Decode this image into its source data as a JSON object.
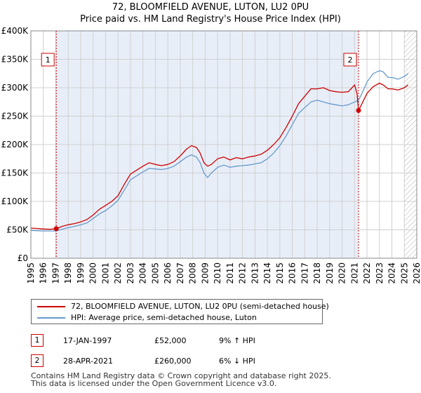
{
  "header": {
    "title_line1": "72, BLOOMFIELD AVENUE, LUTON, LU2 0PU",
    "title_line2": "Price paid vs. HM Land Registry's House Price Index (HPI)"
  },
  "chart_data": {
    "type": "line",
    "xlim": [
      1995,
      2026
    ],
    "ylim": [
      0,
      400000
    ],
    "y_ticks": [
      {
        "value": 0,
        "label": "£0"
      },
      {
        "value": 50000,
        "label": "£50K"
      },
      {
        "value": 100000,
        "label": "£100K"
      },
      {
        "value": 150000,
        "label": "£150K"
      },
      {
        "value": 200000,
        "label": "£200K"
      },
      {
        "value": 250000,
        "label": "£250K"
      },
      {
        "value": 300000,
        "label": "£300K"
      },
      {
        "value": 350000,
        "label": "£350K"
      },
      {
        "value": 400000,
        "label": "£400K"
      }
    ],
    "x_ticks": [
      "1995",
      "1996",
      "1997",
      "1998",
      "1999",
      "2000",
      "2001",
      "2002",
      "2003",
      "2004",
      "2005",
      "2006",
      "2007",
      "2008",
      "2009",
      "2010",
      "2011",
      "2012",
      "2013",
      "2014",
      "2015",
      "2016",
      "2017",
      "2018",
      "2019",
      "2020",
      "2021",
      "2022",
      "2023",
      "2024",
      "2025",
      "2026"
    ],
    "grid": true,
    "shaded_period": [
      1997.04,
      2021.32
    ],
    "future_hatch_from": 2025.0,
    "colors": {
      "price": "#cc0000",
      "hpi": "#6699cc",
      "shade": "#e8eef8",
      "marker": "#cc0000"
    },
    "series": [
      {
        "name": "72, BLOOMFIELD AVENUE, LUTON, LU2 0PU (semi-detached house)",
        "color": "#cc0000",
        "points": [
          [
            1995.0,
            53000
          ],
          [
            1995.5,
            52500
          ],
          [
            1996.0,
            51500
          ],
          [
            1996.5,
            51000
          ],
          [
            1997.04,
            52000
          ],
          [
            1997.5,
            56000
          ],
          [
            1998.0,
            59000
          ],
          [
            1998.5,
            61000
          ],
          [
            1999.0,
            64000
          ],
          [
            1999.5,
            68000
          ],
          [
            2000.0,
            76000
          ],
          [
            2000.5,
            86000
          ],
          [
            2001.0,
            93000
          ],
          [
            2001.5,
            100000
          ],
          [
            2002.0,
            110000
          ],
          [
            2002.5,
            130000
          ],
          [
            2003.0,
            148000
          ],
          [
            2003.5,
            155000
          ],
          [
            2004.0,
            162000
          ],
          [
            2004.5,
            168000
          ],
          [
            2005.0,
            165000
          ],
          [
            2005.5,
            163000
          ],
          [
            2006.0,
            165000
          ],
          [
            2006.5,
            170000
          ],
          [
            2007.0,
            180000
          ],
          [
            2007.5,
            192000
          ],
          [
            2007.9,
            198000
          ],
          [
            2008.3,
            195000
          ],
          [
            2008.6,
            185000
          ],
          [
            2008.9,
            168000
          ],
          [
            2009.2,
            162000
          ],
          [
            2009.5,
            165000
          ],
          [
            2010.0,
            175000
          ],
          [
            2010.5,
            178000
          ],
          [
            2011.0,
            173000
          ],
          [
            2011.5,
            177000
          ],
          [
            2012.0,
            175000
          ],
          [
            2012.5,
            178000
          ],
          [
            2013.0,
            180000
          ],
          [
            2013.5,
            183000
          ],
          [
            2014.0,
            190000
          ],
          [
            2014.5,
            200000
          ],
          [
            2015.0,
            212000
          ],
          [
            2015.5,
            230000
          ],
          [
            2016.0,
            250000
          ],
          [
            2016.5,
            272000
          ],
          [
            2017.0,
            285000
          ],
          [
            2017.5,
            298000
          ],
          [
            2018.0,
            298000
          ],
          [
            2018.5,
            300000
          ],
          [
            2019.0,
            295000
          ],
          [
            2019.5,
            293000
          ],
          [
            2020.0,
            292000
          ],
          [
            2020.5,
            293000
          ],
          [
            2020.8,
            300000
          ],
          [
            2021.0,
            305000
          ],
          [
            2021.2,
            290000
          ],
          [
            2021.32,
            260000
          ],
          [
            2021.6,
            272000
          ],
          [
            2022.0,
            290000
          ],
          [
            2022.5,
            302000
          ],
          [
            2023.0,
            308000
          ],
          [
            2023.3,
            305000
          ],
          [
            2023.7,
            298000
          ],
          [
            2024.0,
            298000
          ],
          [
            2024.5,
            296000
          ],
          [
            2025.0,
            300000
          ],
          [
            2025.3,
            305000
          ]
        ]
      },
      {
        "name": "HPI: Average price, semi-detached house, Luton",
        "color": "#6699cc",
        "points": [
          [
            1995.0,
            49000
          ],
          [
            1995.5,
            48500
          ],
          [
            1996.0,
            48000
          ],
          [
            1996.5,
            48000
          ],
          [
            1997.04,
            48000
          ],
          [
            1997.5,
            51000
          ],
          [
            1998.0,
            54000
          ],
          [
            1998.5,
            56000
          ],
          [
            1999.0,
            59000
          ],
          [
            1999.5,
            62000
          ],
          [
            2000.0,
            70000
          ],
          [
            2000.5,
            78000
          ],
          [
            2001.0,
            84000
          ],
          [
            2001.5,
            92000
          ],
          [
            2002.0,
            102000
          ],
          [
            2002.5,
            120000
          ],
          [
            2003.0,
            138000
          ],
          [
            2003.5,
            145000
          ],
          [
            2004.0,
            152000
          ],
          [
            2004.5,
            158000
          ],
          [
            2005.0,
            157000
          ],
          [
            2005.5,
            156000
          ],
          [
            2006.0,
            158000
          ],
          [
            2006.5,
            162000
          ],
          [
            2007.0,
            170000
          ],
          [
            2007.5,
            178000
          ],
          [
            2007.9,
            182000
          ],
          [
            2008.3,
            178000
          ],
          [
            2008.6,
            168000
          ],
          [
            2008.9,
            150000
          ],
          [
            2009.2,
            142000
          ],
          [
            2009.5,
            150000
          ],
          [
            2010.0,
            160000
          ],
          [
            2010.5,
            164000
          ],
          [
            2011.0,
            160000
          ],
          [
            2011.5,
            162000
          ],
          [
            2012.0,
            163000
          ],
          [
            2012.5,
            164000
          ],
          [
            2013.0,
            166000
          ],
          [
            2013.5,
            168000
          ],
          [
            2014.0,
            175000
          ],
          [
            2014.5,
            185000
          ],
          [
            2015.0,
            198000
          ],
          [
            2015.5,
            215000
          ],
          [
            2016.0,
            235000
          ],
          [
            2016.5,
            255000
          ],
          [
            2017.0,
            265000
          ],
          [
            2017.5,
            275000
          ],
          [
            2018.0,
            278000
          ],
          [
            2018.5,
            275000
          ],
          [
            2019.0,
            272000
          ],
          [
            2019.5,
            270000
          ],
          [
            2020.0,
            268000
          ],
          [
            2020.5,
            270000
          ],
          [
            2021.0,
            275000
          ],
          [
            2021.32,
            278000
          ],
          [
            2021.6,
            290000
          ],
          [
            2022.0,
            310000
          ],
          [
            2022.5,
            325000
          ],
          [
            2023.0,
            330000
          ],
          [
            2023.3,
            328000
          ],
          [
            2023.7,
            318000
          ],
          [
            2024.0,
            318000
          ],
          [
            2024.5,
            315000
          ],
          [
            2025.0,
            320000
          ],
          [
            2025.3,
            325000
          ]
        ]
      }
    ],
    "markers": [
      {
        "label": "1",
        "x": 1997.04,
        "y": 52000
      },
      {
        "label": "2",
        "x": 2021.32,
        "y": 260000
      }
    ]
  },
  "legend": {
    "items": [
      {
        "label": "72, BLOOMFIELD AVENUE, LUTON, LU2 0PU (semi-detached house)",
        "color": "#cc0000"
      },
      {
        "label": "HPI: Average price, semi-detached house, Luton",
        "color": "#6699cc"
      }
    ]
  },
  "transactions": [
    {
      "num": "1",
      "date": "17-JAN-1997",
      "price": "£52,000",
      "hpi": "9% ↑ HPI"
    },
    {
      "num": "2",
      "date": "28-APR-2021",
      "price": "£260,000",
      "hpi": "6% ↓ HPI"
    }
  ],
  "footer": {
    "line1": "Contains HM Land Registry data © Crown copyright and database right 2025.",
    "line2": "This data is licensed under the Open Government Licence v3.0."
  }
}
